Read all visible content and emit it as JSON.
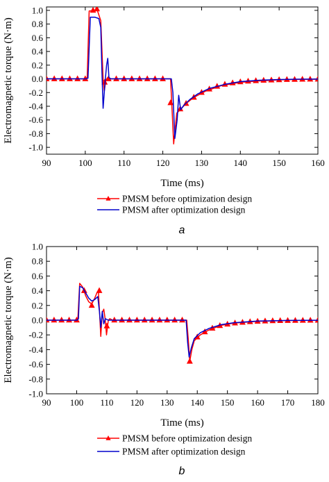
{
  "colors": {
    "before": "#ff0000",
    "after": "#0000cc"
  },
  "chart_data": [
    {
      "type": "line",
      "subfigure_label": "a",
      "xlabel": "Time (ms)",
      "ylabel": "Electromagnetic torque (N·m)",
      "xlim": [
        90,
        160
      ],
      "ylim": [
        -1.1,
        1.05
      ],
      "xticks": [
        90,
        100,
        110,
        120,
        130,
        140,
        150,
        160
      ],
      "yticks": [
        -1.0,
        -0.8,
        -0.6,
        -0.4,
        -0.2,
        0.0,
        0.2,
        0.4,
        0.6,
        0.8,
        1.0
      ],
      "ytick_labels": [
        "-1.0",
        "-0.8",
        "-0.6",
        "-0.4",
        "-0.2",
        "0.0",
        "0.2",
        "0.4",
        "0.6",
        "0.8",
        "1.0"
      ],
      "grid": false,
      "legend_position": "below",
      "series": [
        {
          "name": "PMSM before optimization design",
          "color": "#ff0000",
          "marker": "triangle",
          "points": [
            [
              90,
              0
            ],
            [
              100,
              0
            ],
            [
              100.5,
              0.02
            ],
            [
              101,
              0.99
            ],
            [
              102.5,
              1.0
            ],
            [
              103,
              1.02
            ],
            [
              104,
              0.85
            ],
            [
              104.6,
              0.0
            ],
            [
              104.9,
              -0.18
            ],
            [
              105.3,
              -0.02
            ],
            [
              105.8,
              0.02
            ],
            [
              106.5,
              0
            ],
            [
              122,
              0
            ],
            [
              122.3,
              -0.35
            ],
            [
              122.8,
              -0.95
            ],
            [
              123.6,
              -0.5
            ],
            [
              124.5,
              -0.45
            ],
            [
              126,
              -0.36
            ],
            [
              128,
              -0.27
            ],
            [
              131,
              -0.18
            ],
            [
              135,
              -0.1
            ],
            [
              140,
              -0.05
            ],
            [
              145,
              -0.03
            ],
            [
              150,
              -0.015
            ],
            [
              155,
              -0.008
            ],
            [
              160,
              -0.005
            ]
          ],
          "markers": [
            [
              90,
              0
            ],
            [
              92,
              0
            ],
            [
              94,
              0
            ],
            [
              96,
              0
            ],
            [
              98,
              0
            ],
            [
              100,
              0
            ],
            [
              102,
              1.0
            ],
            [
              103,
              1.02
            ],
            [
              105,
              -0.05
            ],
            [
              106,
              0
            ],
            [
              108,
              0
            ],
            [
              110,
              0
            ],
            [
              112,
              0
            ],
            [
              114,
              0
            ],
            [
              116,
              0
            ],
            [
              118,
              0
            ],
            [
              120,
              0
            ],
            [
              122,
              -0.35
            ],
            [
              124.5,
              -0.44
            ],
            [
              126,
              -0.36
            ],
            [
              128,
              -0.27
            ],
            [
              130,
              -0.2
            ],
            [
              132,
              -0.15
            ],
            [
              134,
              -0.11
            ],
            [
              136,
              -0.08
            ],
            [
              138,
              -0.06
            ],
            [
              140,
              -0.045
            ],
            [
              142,
              -0.035
            ],
            [
              144,
              -0.028
            ],
            [
              146,
              -0.022
            ],
            [
              148,
              -0.018
            ],
            [
              150,
              -0.014
            ],
            [
              152,
              -0.011
            ],
            [
              154,
              -0.009
            ],
            [
              156,
              -0.007
            ],
            [
              158,
              -0.006
            ],
            [
              160,
              -0.005
            ]
          ]
        },
        {
          "name": "PMSM after optimization design",
          "color": "#0000cc",
          "marker": "none",
          "points": [
            [
              90,
              0
            ],
            [
              100.2,
              0
            ],
            [
              100.7,
              0.01
            ],
            [
              101.3,
              0.9
            ],
            [
              102.5,
              0.9
            ],
            [
              103.5,
              0.88
            ],
            [
              104,
              0.75
            ],
            [
              104.3,
              0.1
            ],
            [
              104.6,
              -0.43
            ],
            [
              105.1,
              -0.05
            ],
            [
              105.5,
              0.2
            ],
            [
              105.8,
              0.3
            ],
            [
              106.1,
              0.02
            ],
            [
              106.6,
              0
            ],
            [
              122.2,
              0
            ],
            [
              122.6,
              -0.2
            ],
            [
              123.1,
              -0.87
            ],
            [
              123.7,
              -0.6
            ],
            [
              124.1,
              -0.24
            ],
            [
              124.6,
              -0.45
            ],
            [
              125.5,
              -0.38
            ],
            [
              127,
              -0.3
            ],
            [
              129,
              -0.22
            ],
            [
              132,
              -0.14
            ],
            [
              136,
              -0.08
            ],
            [
              140,
              -0.04
            ],
            [
              145,
              -0.02
            ],
            [
              150,
              -0.01
            ],
            [
              155,
              -0.005
            ],
            [
              160,
              -0.003
            ]
          ]
        }
      ]
    },
    {
      "type": "line",
      "subfigure_label": "b",
      "xlabel": "Time (ms)",
      "ylabel": "Electromagnetic torque (N·m)",
      "xlim": [
        90,
        180
      ],
      "ylim": [
        -1.0,
        1.0
      ],
      "xticks": [
        90,
        100,
        110,
        120,
        130,
        140,
        150,
        160,
        170,
        180
      ],
      "yticks": [
        -1.0,
        -0.8,
        -0.6,
        -0.4,
        -0.2,
        0.0,
        0.2,
        0.4,
        0.6,
        0.8,
        1.0
      ],
      "ytick_labels": [
        "-1.0",
        "-0.8",
        "-0.6",
        "-0.4",
        "-0.2",
        "0.0",
        "0.2",
        "0.4",
        "0.6",
        "0.8",
        "1.0"
      ],
      "grid": false,
      "legend_position": "below",
      "series": [
        {
          "name": "PMSM before optimization design",
          "color": "#ff0000",
          "marker": "triangle",
          "points": [
            [
              90,
              0
            ],
            [
              100,
              0
            ],
            [
              100.4,
              0.02
            ],
            [
              101,
              0.5
            ],
            [
              102,
              0.45
            ],
            [
              103,
              0.33
            ],
            [
              104,
              0.25
            ],
            [
              105,
              0.22
            ],
            [
              106,
              0.3
            ],
            [
              106.8,
              0.38
            ],
            [
              107.2,
              0.4
            ],
            [
              107.6,
              0.1
            ],
            [
              108,
              -0.22
            ],
            [
              108.5,
              0.1
            ],
            [
              109,
              0.15
            ],
            [
              109.5,
              0.0
            ],
            [
              109.9,
              -0.2
            ],
            [
              110.5,
              0.0
            ],
            [
              111,
              0.02
            ],
            [
              112,
              0
            ],
            [
              136.5,
              0
            ],
            [
              137,
              -0.25
            ],
            [
              137.5,
              -0.56
            ],
            [
              138.2,
              -0.4
            ],
            [
              139,
              -0.28
            ],
            [
              141,
              -0.2
            ],
            [
              144,
              -0.13
            ],
            [
              148,
              -0.07
            ],
            [
              152,
              -0.04
            ],
            [
              160,
              -0.015
            ],
            [
              170,
              -0.005
            ],
            [
              180,
              -0.002
            ]
          ],
          "markers": [
            [
              90,
              0
            ],
            [
              92.5,
              0
            ],
            [
              95,
              0
            ],
            [
              97.5,
              0
            ],
            [
              100,
              0
            ],
            [
              102.5,
              0.4
            ],
            [
              105,
              0.2
            ],
            [
              107.5,
              0.4
            ],
            [
              110,
              -0.08
            ],
            [
              112.5,
              0
            ],
            [
              115,
              0
            ],
            [
              117.5,
              0
            ],
            [
              120,
              0
            ],
            [
              122.5,
              0
            ],
            [
              125,
              0
            ],
            [
              127.5,
              0
            ],
            [
              130,
              0
            ],
            [
              132.5,
              0
            ],
            [
              135,
              0
            ],
            [
              137.5,
              -0.56
            ],
            [
              140,
              -0.23
            ],
            [
              142.5,
              -0.16
            ],
            [
              145,
              -0.11
            ],
            [
              147.5,
              -0.075
            ],
            [
              150,
              -0.055
            ],
            [
              152.5,
              -0.04
            ],
            [
              155,
              -0.03
            ],
            [
              157.5,
              -0.022
            ],
            [
              160,
              -0.016
            ],
            [
              162.5,
              -0.012
            ],
            [
              165,
              -0.009
            ],
            [
              167.5,
              -0.007
            ],
            [
              170,
              -0.005
            ],
            [
              172.5,
              -0.004
            ],
            [
              175,
              -0.003
            ],
            [
              177.5,
              -0.002
            ],
            [
              180,
              -0.002
            ]
          ]
        },
        {
          "name": "PMSM after optimization design",
          "color": "#0000cc",
          "marker": "none",
          "points": [
            [
              90,
              0
            ],
            [
              100.2,
              0
            ],
            [
              100.6,
              0.02
            ],
            [
              101,
              0.46
            ],
            [
              102,
              0.44
            ],
            [
              103,
              0.37
            ],
            [
              104,
              0.3
            ],
            [
              105,
              0.26
            ],
            [
              106,
              0.28
            ],
            [
              107,
              0.32
            ],
            [
              107.6,
              0.1
            ],
            [
              108,
              -0.1
            ],
            [
              108.5,
              0.12
            ],
            [
              109,
              -0.05
            ],
            [
              109.5,
              0.02
            ],
            [
              110.5,
              0.0
            ],
            [
              112,
              0
            ],
            [
              136.3,
              0
            ],
            [
              136.8,
              -0.3
            ],
            [
              137.3,
              -0.5
            ],
            [
              138,
              -0.38
            ],
            [
              139,
              -0.25
            ],
            [
              141,
              -0.17
            ],
            [
              144,
              -0.11
            ],
            [
              148,
              -0.06
            ],
            [
              152,
              -0.035
            ],
            [
              160,
              -0.012
            ],
            [
              170,
              -0.004
            ],
            [
              180,
              -0.001
            ]
          ]
        }
      ]
    }
  ]
}
